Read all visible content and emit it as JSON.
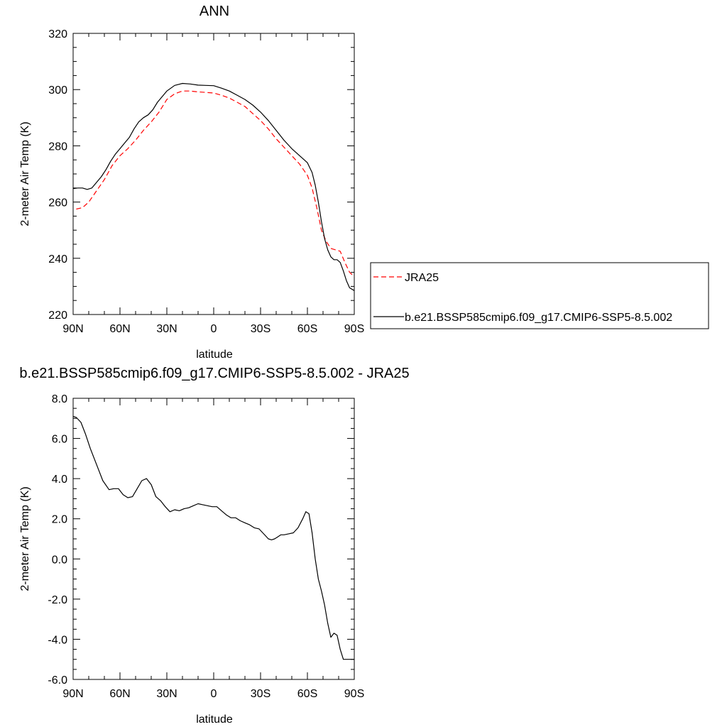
{
  "chart_data": [
    {
      "type": "line",
      "title": "ANN",
      "xlabel": "latitude",
      "ylabel": "2-meter Air Temp (K)",
      "xlim": [
        90,
        -90
      ],
      "ylim": [
        220,
        320
      ],
      "x_ticks": [
        90,
        60,
        30,
        0,
        -30,
        -60,
        -90
      ],
      "x_tick_labels": [
        "90N",
        "60N",
        "30N",
        "0",
        "30S",
        "60S",
        "90S"
      ],
      "y_ticks": [
        220,
        240,
        260,
        280,
        300,
        320
      ],
      "y_tick_labels": [
        "220",
        "240",
        "260",
        "280",
        "300",
        "320"
      ],
      "legend_position": "right",
      "series": [
        {
          "name": "JRA25",
          "color": "#ff0000",
          "dash": "dashed",
          "x": [
            88,
            84,
            80,
            75,
            70,
            65,
            60,
            55,
            50,
            45,
            40,
            35,
            30,
            25,
            20,
            15,
            10,
            5,
            0,
            -5,
            -10,
            -15,
            -20,
            -25,
            -30,
            -35,
            -40,
            -45,
            -50,
            -55,
            -60,
            -63,
            -66,
            -69,
            -72,
            -75,
            -78,
            -81,
            -84,
            -87,
            -90
          ],
          "values": [
            257.5,
            258,
            260,
            264,
            268,
            273,
            276.5,
            279,
            282,
            285.5,
            288.5,
            292,
            296.5,
            298.5,
            299.5,
            299.5,
            299.2,
            299,
            298.8,
            298,
            297,
            295.5,
            294,
            291.5,
            289,
            286,
            282.5,
            279.5,
            276.5,
            273.5,
            269.5,
            265,
            258,
            250,
            246,
            243.5,
            243,
            242.5,
            238.5,
            235,
            233.5
          ]
        },
        {
          "name": "b.e21.BSSP585cmip6.f09_g17.CMIP6-SSP5-8.5.002",
          "color": "#000000",
          "dash": "solid",
          "x": [
            90,
            87,
            84,
            81,
            78,
            75,
            72,
            69,
            66,
            63,
            60,
            57,
            54,
            51,
            48,
            45,
            42,
            39,
            36,
            33,
            30,
            25,
            20,
            15,
            10,
            5,
            0,
            -5,
            -10,
            -15,
            -20,
            -25,
            -30,
            -35,
            -40,
            -45,
            -50,
            -55,
            -60,
            -63,
            -65,
            -67,
            -69,
            -71,
            -73,
            -75,
            -77,
            -79,
            -81,
            -83,
            -85,
            -87,
            -90
          ],
          "values": [
            264.8,
            265,
            265,
            264.5,
            265,
            267,
            269,
            271.5,
            274.5,
            277,
            279,
            281,
            283,
            286,
            288.5,
            290,
            291,
            292.8,
            295.5,
            297.5,
            299.5,
            301.5,
            302.2,
            302,
            301.6,
            301.5,
            301.4,
            300.5,
            299.5,
            298,
            296.5,
            294.5,
            292,
            289,
            285.5,
            282,
            279,
            276.5,
            274,
            270.5,
            266,
            260,
            253,
            247,
            243,
            240.5,
            239.5,
            239.5,
            238.5,
            235.5,
            232,
            229.5,
            228.5
          ]
        }
      ]
    },
    {
      "type": "line",
      "title": "b.e21.BSSP585cmip6.f09_g17.CMIP6-SSP5-8.5.002 - JRA25",
      "xlabel": "latitude",
      "ylabel": "2-meter Air Temp (K)",
      "xlim": [
        90,
        -90
      ],
      "ylim": [
        -6.0,
        8.0
      ],
      "x_ticks": [
        90,
        60,
        30,
        0,
        -30,
        -60,
        -90
      ],
      "x_tick_labels": [
        "90N",
        "60N",
        "30N",
        "0",
        "30S",
        "60S",
        "90S"
      ],
      "y_ticks": [
        -6,
        -4,
        -2,
        0,
        2,
        4,
        6,
        8
      ],
      "y_tick_labels": [
        "-6.0",
        "-4.0",
        "-2.0",
        "0.0",
        "2.0",
        "4.0",
        "6.0",
        "8.0"
      ],
      "series": [
        {
          "color": "#000000",
          "dash": "solid",
          "x": [
            90,
            88,
            85,
            82,
            79,
            75,
            71,
            67,
            64,
            61,
            58,
            55,
            52,
            49,
            46,
            43,
            40,
            37,
            34,
            31,
            28,
            25,
            22,
            19,
            16,
            13,
            10,
            7,
            4,
            1,
            -2,
            -5,
            -8,
            -11,
            -14,
            -17,
            -20,
            -23,
            -26,
            -29,
            -32,
            -35,
            -37,
            -39,
            -41,
            -43,
            -45,
            -48,
            -51,
            -54,
            -57,
            -59,
            -61,
            -63,
            -65,
            -67,
            -69,
            -71,
            -73,
            -75,
            -77,
            -79,
            -81,
            -83,
            -85,
            -87,
            -90
          ],
          "values": [
            7.1,
            7.05,
            6.8,
            6.2,
            5.5,
            4.7,
            3.9,
            3.45,
            3.5,
            3.5,
            3.2,
            3.05,
            3.1,
            3.5,
            3.9,
            4.0,
            3.7,
            3.1,
            2.9,
            2.6,
            2.35,
            2.45,
            2.4,
            2.5,
            2.55,
            2.65,
            2.75,
            2.7,
            2.65,
            2.6,
            2.6,
            2.4,
            2.2,
            2.05,
            2.05,
            1.9,
            1.8,
            1.7,
            1.55,
            1.5,
            1.25,
            1.0,
            0.95,
            1.0,
            1.1,
            1.2,
            1.2,
            1.25,
            1.3,
            1.55,
            2.0,
            2.35,
            2.25,
            1.3,
            0.0,
            -1.0,
            -1.6,
            -2.3,
            -3.2,
            -3.9,
            -3.7,
            -3.8,
            -4.5,
            -5.0,
            -5.0,
            -5.0,
            -5.0
          ]
        }
      ]
    }
  ]
}
